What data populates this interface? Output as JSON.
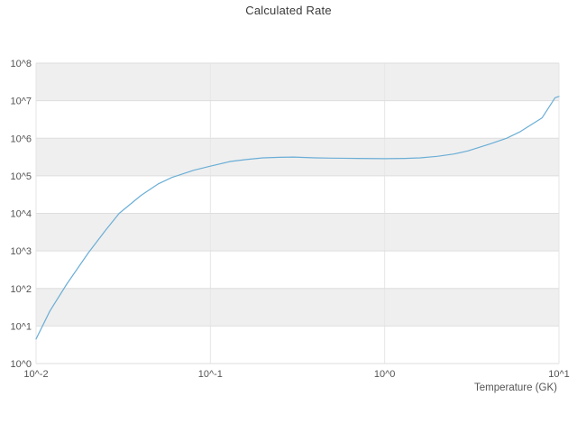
{
  "chart": {
    "title": "Calculated Rate",
    "x_axis_label": "Temperature (GK)"
  },
  "chart_data": {
    "type": "line",
    "title": "Calculated Rate",
    "xlabel": "Temperature (GK)",
    "ylabel": "",
    "x_scale": "log10",
    "y_scale": "log10",
    "xlim_log10": [
      -2,
      1
    ],
    "ylim_log10": [
      0,
      8
    ],
    "x_tick_labels": [
      "10^-2",
      "10^-1",
      "10^0",
      "10^1"
    ],
    "y_tick_labels": [
      "10^0",
      "10^1",
      "10^2",
      "10^3",
      "10^4",
      "10^5",
      "10^6",
      "10^7",
      "10^8"
    ],
    "grid": "horizontal decade gridlines with alternating shaded bands",
    "legend": "none",
    "line_color": "#6baed6",
    "band_color": "#efefef",
    "gridline_color": "#dedede",
    "series": [
      {
        "name": "calculated-rate",
        "x": [
          0.01,
          0.012,
          0.015,
          0.02,
          0.025,
          0.03,
          0.04,
          0.05,
          0.06,
          0.08,
          0.1,
          0.13,
          0.16,
          0.2,
          0.25,
          0.3,
          0.4,
          0.5,
          0.7,
          1.0,
          1.3,
          1.6,
          2.0,
          2.5,
          3.0,
          4.0,
          5.0,
          6.0,
          8.0,
          9.5,
          10.0
        ],
        "y": [
          4.5,
          25,
          130,
          900,
          3500,
          10000,
          30000,
          60000,
          90000,
          140000,
          180000,
          240000,
          270000,
          300000,
          310000,
          315000,
          300000,
          295000,
          290000,
          285000,
          290000,
          300000,
          330000,
          380000,
          460000,
          700000,
          1000000,
          1500000,
          3500000,
          12000000,
          13000000
        ]
      }
    ]
  }
}
